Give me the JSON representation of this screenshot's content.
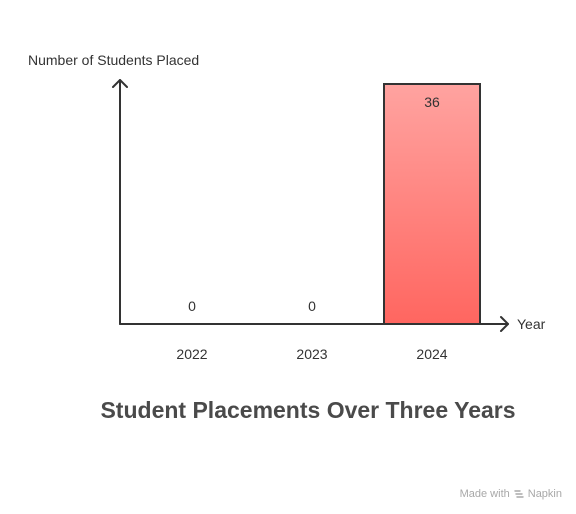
{
  "chart_data": {
    "type": "bar",
    "title": "Student Placements Over Three Years",
    "ylabel": "Number of Students Placed",
    "xlabel": "Year",
    "categories": [
      "2022",
      "2023",
      "2024"
    ],
    "values": [
      0,
      0,
      36
    ],
    "data_labels": [
      "0",
      "0",
      "36"
    ],
    "ylim": [
      0,
      36
    ],
    "grid": false,
    "legend": "none",
    "colors": {
      "bar_top": "#ffa3a0",
      "bar_bottom": "#ff6660",
      "bar_border": "#333333",
      "axis": "#333333"
    }
  },
  "watermark": {
    "label": "Made with",
    "brand": "Napkin",
    "icon": "napkin-icon"
  }
}
